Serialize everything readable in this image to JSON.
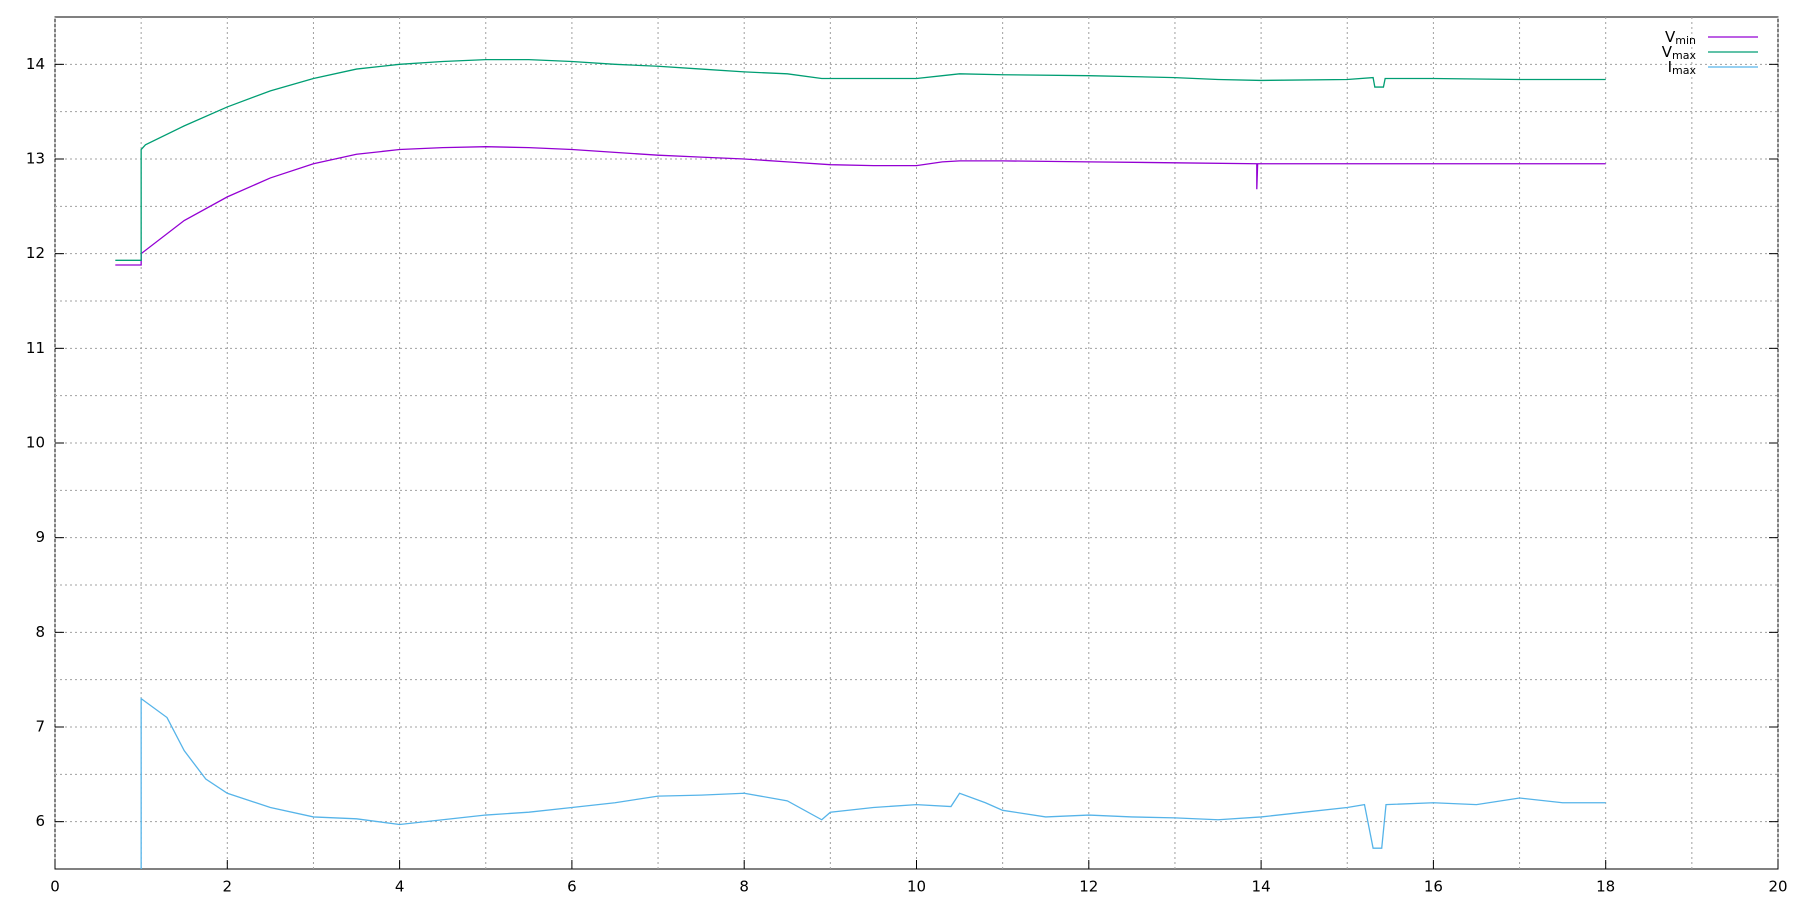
{
  "chart_data": {
    "type": "line",
    "xlim": [
      0,
      20
    ],
    "xticks": [
      0,
      2,
      4,
      6,
      8,
      10,
      12,
      14,
      16,
      18,
      20
    ],
    "xminorticks": [
      1,
      3,
      5,
      7,
      9,
      11,
      13,
      15,
      17,
      19
    ],
    "ylim": [
      5.5,
      14.5
    ],
    "yticks": [
      6,
      7,
      8,
      9,
      10,
      11,
      12,
      13,
      14
    ],
    "yminorticks": [
      6.5,
      7.5,
      8.5,
      9.5,
      10.5,
      11.5,
      12.5,
      13.5
    ],
    "grid": true,
    "legend": "top-right",
    "series": [
      {
        "name": "V",
        "name_sub": "min",
        "color": "#9400d3",
        "x": [
          0.7,
          1.0,
          1.0,
          1.5,
          2,
          2.5,
          3,
          3.5,
          4,
          4.5,
          5,
          5.5,
          6,
          6.5,
          7,
          7.5,
          8,
          8.5,
          9,
          9.5,
          10,
          10.3,
          10.5,
          11,
          12,
          13,
          13.95,
          13.95,
          13.96,
          14,
          15,
          16,
          17,
          18
        ],
        "values": [
          11.88,
          11.88,
          12.0,
          12.35,
          12.6,
          12.8,
          12.95,
          13.05,
          13.1,
          13.12,
          13.13,
          13.12,
          13.1,
          13.07,
          13.04,
          13.02,
          13.0,
          12.97,
          12.94,
          12.93,
          12.93,
          12.97,
          12.98,
          12.98,
          12.97,
          12.96,
          12.95,
          12.68,
          12.95,
          12.95,
          12.95,
          12.95,
          12.95,
          12.95
        ]
      },
      {
        "name": "V",
        "name_sub": "max",
        "color": "#009e73",
        "x": [
          0.7,
          1.0,
          1.0,
          1.05,
          1.5,
          2,
          2.5,
          3,
          3.5,
          4,
          4.5,
          5,
          5.5,
          6,
          6.5,
          7,
          7.5,
          8,
          8.5,
          8.9,
          9.5,
          10,
          10.3,
          10.5,
          11,
          12,
          13,
          13.5,
          14,
          15,
          15.3,
          15.32,
          15.42,
          15.44,
          16,
          17,
          18
        ],
        "values": [
          11.93,
          11.93,
          13.1,
          13.15,
          13.35,
          13.55,
          13.72,
          13.85,
          13.95,
          14.0,
          14.03,
          14.05,
          14.05,
          14.03,
          14.0,
          13.98,
          13.95,
          13.92,
          13.9,
          13.85,
          13.85,
          13.85,
          13.88,
          13.9,
          13.89,
          13.88,
          13.86,
          13.84,
          13.83,
          13.84,
          13.86,
          13.76,
          13.76,
          13.85,
          13.85,
          13.84,
          13.84
        ]
      },
      {
        "name": "I",
        "name_sub": "max",
        "color": "#56b4e9",
        "x": [
          1.0,
          1.0,
          1.3,
          1.5,
          1.75,
          2,
          2.5,
          3,
          3.5,
          4,
          4.5,
          5,
          5.5,
          6,
          6.5,
          7,
          7.5,
          8,
          8.5,
          8.9,
          9,
          9.5,
          10,
          10.4,
          10.5,
          10.8,
          11,
          11.5,
          12,
          12.5,
          13,
          13.5,
          14,
          14.5,
          15,
          15.2,
          15.3,
          15.4,
          15.45,
          16,
          16.5,
          17,
          17.5,
          18
        ],
        "values": [
          5.5,
          7.3,
          7.1,
          6.75,
          6.45,
          6.3,
          6.15,
          6.05,
          6.03,
          5.97,
          6.02,
          6.07,
          6.1,
          6.15,
          6.2,
          6.27,
          6.28,
          6.3,
          6.22,
          6.02,
          6.1,
          6.15,
          6.18,
          6.16,
          6.3,
          6.2,
          6.12,
          6.05,
          6.07,
          6.05,
          6.04,
          6.02,
          6.05,
          6.1,
          6.15,
          6.18,
          5.72,
          5.72,
          6.18,
          6.2,
          6.18,
          6.25,
          6.2,
          6.2
        ]
      }
    ]
  }
}
